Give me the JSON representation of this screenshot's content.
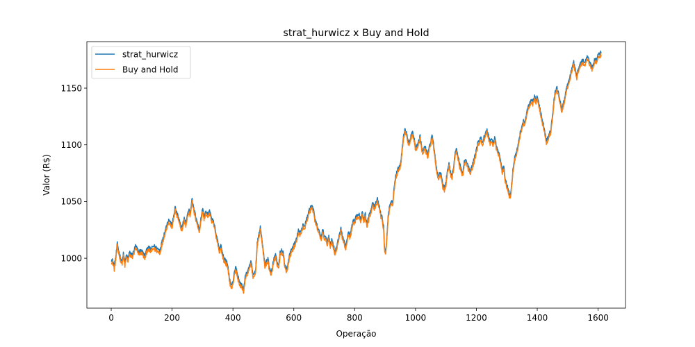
{
  "chart_data": {
    "type": "line",
    "title": "strat_hurwicz x Buy and Hold",
    "xlabel": "Operação",
    "ylabel": "Valor (R$)",
    "xlim": [
      -80,
      1690
    ],
    "ylim": [
      956,
      1191
    ],
    "xticks": [
      0,
      200,
      400,
      600,
      800,
      1000,
      1200,
      1400,
      1600
    ],
    "yticks": [
      1000,
      1050,
      1100,
      1150
    ],
    "grid": false,
    "legend_position": "top-left",
    "series": [
      {
        "name": "strat_hurwicz",
        "color": "#1f77b4",
        "anchors": [
          [
            0,
            999
          ],
          [
            5,
            998
          ],
          [
            10,
            993
          ],
          [
            15,
            1001
          ],
          [
            20,
            1013
          ],
          [
            25,
            1006
          ],
          [
            30,
            1001
          ],
          [
            35,
            997
          ],
          [
            40,
            1004
          ],
          [
            45,
            996
          ],
          [
            50,
            1003
          ],
          [
            55,
            1000
          ],
          [
            60,
            1005
          ],
          [
            70,
            1003
          ],
          [
            80,
            1011
          ],
          [
            90,
            1006
          ],
          [
            100,
            1007
          ],
          [
            110,
            1002
          ],
          [
            120,
            1010
          ],
          [
            130,
            1008
          ],
          [
            140,
            1011
          ],
          [
            150,
            1009
          ],
          [
            160,
            1007
          ],
          [
            170,
            1018
          ],
          [
            180,
            1027
          ],
          [
            185,
            1032
          ],
          [
            190,
            1034
          ],
          [
            200,
            1029
          ],
          [
            210,
            1045
          ],
          [
            215,
            1040
          ],
          [
            220,
            1037
          ],
          [
            225,
            1032
          ],
          [
            230,
            1026
          ],
          [
            235,
            1030
          ],
          [
            240,
            1035
          ],
          [
            245,
            1031
          ],
          [
            250,
            1038
          ],
          [
            255,
            1043
          ],
          [
            260,
            1040
          ],
          [
            265,
            1053
          ],
          [
            270,
            1045
          ],
          [
            275,
            1040
          ],
          [
            280,
            1035
          ],
          [
            285,
            1029
          ],
          [
            290,
            1026
          ],
          [
            295,
            1035
          ],
          [
            300,
            1044
          ],
          [
            305,
            1037
          ],
          [
            310,
            1041
          ],
          [
            315,
            1039
          ],
          [
            320,
            1040
          ],
          [
            325,
            1042
          ],
          [
            330,
            1034
          ],
          [
            335,
            1033
          ],
          [
            340,
            1028
          ],
          [
            345,
            1020
          ],
          [
            350,
            1016
          ],
          [
            355,
            1007
          ],
          [
            360,
            1012
          ],
          [
            365,
            1005
          ],
          [
            370,
            1000
          ],
          [
            375,
            999
          ],
          [
            380,
            996
          ],
          [
            385,
            990
          ],
          [
            390,
            980
          ],
          [
            395,
            976
          ],
          [
            400,
            979
          ],
          [
            405,
            989
          ],
          [
            410,
            992
          ],
          [
            415,
            985
          ],
          [
            420,
            981
          ],
          [
            425,
            977
          ],
          [
            430,
            976
          ],
          [
            435,
            973
          ],
          [
            440,
            983
          ],
          [
            445,
            987
          ],
          [
            450,
            989
          ],
          [
            455,
            994
          ],
          [
            460,
            998
          ],
          [
            465,
            987
          ],
          [
            470,
            985
          ],
          [
            475,
            992
          ],
          [
            480,
            1013
          ],
          [
            485,
            1021
          ],
          [
            490,
            1027
          ],
          [
            495,
            1018
          ],
          [
            500,
            1005
          ],
          [
            505,
            995
          ],
          [
            510,
            997
          ],
          [
            515,
            1000
          ],
          [
            520,
            992
          ],
          [
            525,
            986
          ],
          [
            530,
            993
          ],
          [
            535,
            1000
          ],
          [
            540,
            1003
          ],
          [
            545,
            996
          ],
          [
            550,
            993
          ],
          [
            555,
            1005
          ],
          [
            560,
            1007
          ],
          [
            565,
            1005
          ],
          [
            570,
            995
          ],
          [
            575,
            989
          ],
          [
            580,
            994
          ],
          [
            585,
            1002
          ],
          [
            590,
            1006
          ],
          [
            595,
            1009
          ],
          [
            600,
            1012
          ],
          [
            605,
            1014
          ],
          [
            610,
            1018
          ],
          [
            615,
            1025
          ],
          [
            620,
            1022
          ],
          [
            625,
            1025
          ],
          [
            630,
            1030
          ],
          [
            635,
            1028
          ],
          [
            640,
            1033
          ],
          [
            645,
            1037
          ],
          [
            650,
            1042
          ],
          [
            655,
            1045
          ],
          [
            660,
            1047
          ],
          [
            665,
            1042
          ],
          [
            670,
            1034
          ],
          [
            675,
            1030
          ],
          [
            680,
            1026
          ],
          [
            685,
            1022
          ],
          [
            690,
            1019
          ],
          [
            695,
            1025
          ],
          [
            700,
            1020
          ],
          [
            705,
            1018
          ],
          [
            710,
            1014
          ],
          [
            715,
            1020
          ],
          [
            720,
            1012
          ],
          [
            725,
            1017
          ],
          [
            730,
            1012
          ],
          [
            735,
            1006
          ],
          [
            740,
            1009
          ],
          [
            745,
            1015
          ],
          [
            750,
            1022
          ],
          [
            755,
            1026
          ],
          [
            760,
            1020
          ],
          [
            765,
            1015
          ],
          [
            770,
            1010
          ],
          [
            775,
            1017
          ],
          [
            780,
            1023
          ],
          [
            785,
            1020
          ],
          [
            790,
            1027
          ],
          [
            795,
            1033
          ],
          [
            800,
            1032
          ],
          [
            805,
            1038
          ],
          [
            810,
            1037
          ],
          [
            815,
            1039
          ],
          [
            820,
            1034
          ],
          [
            825,
            1042
          ],
          [
            830,
            1035
          ],
          [
            835,
            1039
          ],
          [
            840,
            1030
          ],
          [
            845,
            1035
          ],
          [
            850,
            1040
          ],
          [
            855,
            1045
          ],
          [
            860,
            1050
          ],
          [
            865,
            1045
          ],
          [
            870,
            1049
          ],
          [
            875,
            1052
          ],
          [
            880,
            1047
          ],
          [
            885,
            1040
          ],
          [
            890,
            1036
          ],
          [
            895,
            1028
          ],
          [
            898,
            1010
          ],
          [
            902,
            1006
          ],
          [
            905,
            1015
          ],
          [
            910,
            1038
          ],
          [
            915,
            1046
          ],
          [
            920,
            1049
          ],
          [
            925,
            1050
          ],
          [
            930,
            1063
          ],
          [
            935,
            1073
          ],
          [
            940,
            1077
          ],
          [
            945,
            1081
          ],
          [
            950,
            1083
          ],
          [
            955,
            1093
          ],
          [
            960,
            1108
          ],
          [
            965,
            1113
          ],
          [
            970,
            1112
          ],
          [
            975,
            1104
          ],
          [
            980,
            1103
          ],
          [
            985,
            1108
          ],
          [
            990,
            1112
          ],
          [
            995,
            1106
          ],
          [
            1000,
            1098
          ],
          [
            1005,
            1099
          ],
          [
            1010,
            1104
          ],
          [
            1015,
            1108
          ],
          [
            1020,
            1098
          ],
          [
            1025,
            1094
          ],
          [
            1030,
            1099
          ],
          [
            1035,
            1096
          ],
          [
            1040,
            1091
          ],
          [
            1045,
            1099
          ],
          [
            1050,
            1103
          ],
          [
            1055,
            1109
          ],
          [
            1060,
            1098
          ],
          [
            1065,
            1088
          ],
          [
            1070,
            1078
          ],
          [
            1075,
            1072
          ],
          [
            1080,
            1076
          ],
          [
            1085,
            1074
          ],
          [
            1090,
            1065
          ],
          [
            1095,
            1062
          ],
          [
            1100,
            1067
          ],
          [
            1105,
            1078
          ],
          [
            1110,
            1083
          ],
          [
            1115,
            1076
          ],
          [
            1120,
            1073
          ],
          [
            1125,
            1080
          ],
          [
            1130,
            1093
          ],
          [
            1135,
            1096
          ],
          [
            1140,
            1090
          ],
          [
            1145,
            1083
          ],
          [
            1150,
            1078
          ],
          [
            1155,
            1075
          ],
          [
            1160,
            1085
          ],
          [
            1165,
            1087
          ],
          [
            1170,
            1083
          ],
          [
            1175,
            1080
          ],
          [
            1180,
            1076
          ],
          [
            1185,
            1081
          ],
          [
            1190,
            1085
          ],
          [
            1195,
            1090
          ],
          [
            1200,
            1096
          ],
          [
            1205,
            1102
          ],
          [
            1210,
            1104
          ],
          [
            1215,
            1106
          ],
          [
            1220,
            1102
          ],
          [
            1225,
            1107
          ],
          [
            1230,
            1110
          ],
          [
            1235,
            1113
          ],
          [
            1240,
            1108
          ],
          [
            1245,
            1103
          ],
          [
            1250,
            1106
          ],
          [
            1255,
            1101
          ],
          [
            1260,
            1107
          ],
          [
            1265,
            1100
          ],
          [
            1270,
            1095
          ],
          [
            1275,
            1092
          ],
          [
            1280,
            1085
          ],
          [
            1285,
            1078
          ],
          [
            1290,
            1080
          ],
          [
            1295,
            1070
          ],
          [
            1300,
            1065
          ],
          [
            1305,
            1060
          ],
          [
            1310,
            1055
          ],
          [
            1315,
            1062
          ],
          [
            1320,
            1078
          ],
          [
            1325,
            1088
          ],
          [
            1330,
            1093
          ],
          [
            1335,
            1097
          ],
          [
            1340,
            1105
          ],
          [
            1345,
            1112
          ],
          [
            1350,
            1117
          ],
          [
            1355,
            1121
          ],
          [
            1360,
            1120
          ],
          [
            1365,
            1128
          ],
          [
            1370,
            1133
          ],
          [
            1375,
            1137
          ],
          [
            1380,
            1140
          ],
          [
            1385,
            1138
          ],
          [
            1390,
            1143
          ],
          [
            1395,
            1140
          ],
          [
            1400,
            1142
          ],
          [
            1405,
            1137
          ],
          [
            1410,
            1130
          ],
          [
            1415,
            1124
          ],
          [
            1420,
            1118
          ],
          [
            1425,
            1111
          ],
          [
            1430,
            1104
          ],
          [
            1435,
            1106
          ],
          [
            1440,
            1110
          ],
          [
            1445,
            1114
          ],
          [
            1450,
            1125
          ],
          [
            1455,
            1140
          ],
          [
            1460,
            1148
          ],
          [
            1465,
            1150
          ],
          [
            1470,
            1146
          ],
          [
            1475,
            1139
          ],
          [
            1480,
            1131
          ],
          [
            1485,
            1136
          ],
          [
            1490,
            1141
          ],
          [
            1495,
            1148
          ],
          [
            1500,
            1153
          ],
          [
            1505,
            1158
          ],
          [
            1510,
            1163
          ],
          [
            1515,
            1168
          ],
          [
            1520,
            1173
          ],
          [
            1525,
            1167
          ],
          [
            1530,
            1162
          ],
          [
            1535,
            1166
          ],
          [
            1540,
            1171
          ],
          [
            1545,
            1173
          ],
          [
            1550,
            1175
          ],
          [
            1555,
            1172
          ],
          [
            1560,
            1176
          ],
          [
            1565,
            1178
          ],
          [
            1570,
            1175
          ],
          [
            1575,
            1172
          ],
          [
            1580,
            1168
          ],
          [
            1585,
            1172
          ],
          [
            1590,
            1176
          ],
          [
            1595,
            1175
          ],
          [
            1600,
            1179
          ],
          [
            1605,
            1180
          ],
          [
            1610,
            1182
          ]
        ]
      },
      {
        "name": "Buy and Hold",
        "color": "#ff7f0e",
        "y_offset": -2.5
      }
    ]
  }
}
